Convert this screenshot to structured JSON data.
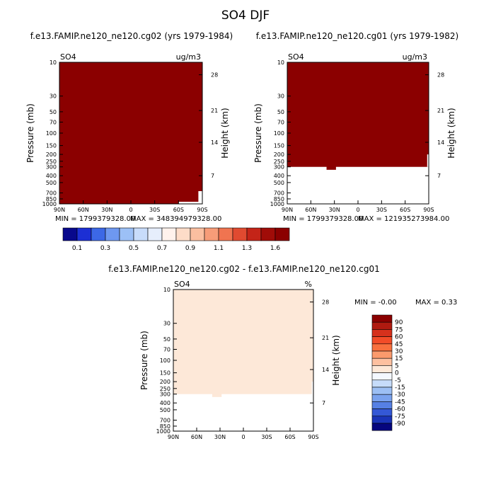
{
  "title": "SO4 DJF",
  "colors": {
    "panel_fill": "#8b0000",
    "diff_fill": "#fde8d8",
    "frame": "#000000"
  },
  "chart_data": [
    {
      "type": "heatmap",
      "title": "f.e13.FAMIP.ne120_ne120.cg02 (yrs 1979-1984)",
      "left_label": "SO4",
      "right_label": "ug/m3",
      "ylabel": "Pressure (mb)",
      "y2label": "Height (km)",
      "x_ticks": [
        "90N",
        "60N",
        "30N",
        "0",
        "30S",
        "60S",
        "90S"
      ],
      "x_range": [
        90,
        -90
      ],
      "y_ticks": [
        "10",
        "30",
        "50",
        "70",
        "100",
        "150",
        "200",
        "250",
        "300",
        "400",
        "500",
        "700",
        "850",
        "1000"
      ],
      "y_range_mb": [
        10,
        1000
      ],
      "height_ticks": [
        "28",
        "21",
        "14",
        "7"
      ],
      "min_label": "MIN = 1799379328.00",
      "max_label": "MAX = 348394979328.00",
      "field_color": "#8b0000",
      "filled_to_mb": 1000
    },
    {
      "type": "heatmap",
      "title": "f.e13.FAMIP.ne120_ne120.cg01 (yrs 1979-1982)",
      "left_label": "SO4",
      "right_label": "ug/m3",
      "ylabel": "Pressure (mb)",
      "y2label": "Height (km)",
      "x_ticks": [
        "90N",
        "60N",
        "30N",
        "0",
        "30S",
        "60S",
        "90S"
      ],
      "x_range": [
        90,
        -90
      ],
      "y_ticks": [
        "10",
        "30",
        "50",
        "70",
        "100",
        "150",
        "200",
        "250",
        "300",
        "400",
        "500",
        "700",
        "850",
        "1000"
      ],
      "y_range_mb": [
        10,
        1000
      ],
      "height_ticks": [
        "28",
        "21",
        "14",
        "7"
      ],
      "min_label": "MIN = 1799379328.00",
      "max_label": "MAX = 121935273984.00",
      "field_color": "#8b0000",
      "filled_to_mb": 300
    },
    {
      "type": "heatmap",
      "title": "f.e13.FAMIP.ne120_ne120.cg02 - f.e13.FAMIP.ne120_ne120.cg01",
      "left_label": "SO4",
      "right_label": "%",
      "ylabel": "Pressure (mb)",
      "y2label": "Height (km)",
      "x_ticks": [
        "90N",
        "60N",
        "30N",
        "0",
        "30S",
        "60S",
        "90S"
      ],
      "x_range": [
        90,
        -90
      ],
      "y_ticks": [
        "10",
        "30",
        "50",
        "70",
        "100",
        "150",
        "200",
        "250",
        "300",
        "400",
        "500",
        "700",
        "850",
        "1000"
      ],
      "y_range_mb": [
        10,
        1000
      ],
      "height_ticks": [
        "28",
        "21",
        "14",
        "7"
      ],
      "min_label": "MIN =   -0.00",
      "max_label": "MAX =    0.33",
      "field_color": "#fde8d8",
      "filled_to_mb": 300
    }
  ],
  "colorbar_top": {
    "labels": [
      "0.1",
      "0.3",
      "0.5",
      "0.7",
      "0.9",
      "1.1",
      "1.3",
      "1.6"
    ],
    "colors": [
      "#08088c",
      "#1c2fd4",
      "#3c68e6",
      "#6e98f0",
      "#9cc0f6",
      "#c8dcfa",
      "#e6eefc",
      "#fff2ec",
      "#fddcc8",
      "#fbbfa0",
      "#f79c78",
      "#f07450",
      "#e04a30",
      "#c42418",
      "#a00c08",
      "#8b0000"
    ]
  },
  "colorbar_diff": {
    "labels": [
      "90",
      "75",
      "60",
      "45",
      "30",
      "15",
      "5",
      "0",
      "-5",
      "-15",
      "-30",
      "-45",
      "-60",
      "-75",
      "-90"
    ],
    "colors": [
      "#8b0000",
      "#b01a10",
      "#d6311c",
      "#f24c28",
      "#f8703e",
      "#fb9a6c",
      "#fdc0a0",
      "#fde8d8",
      "#f4f8ff",
      "#c6dcfa",
      "#9cbff4",
      "#7aa2ee",
      "#5680e4",
      "#3458d6",
      "#1a34b8",
      "#06067e"
    ]
  }
}
